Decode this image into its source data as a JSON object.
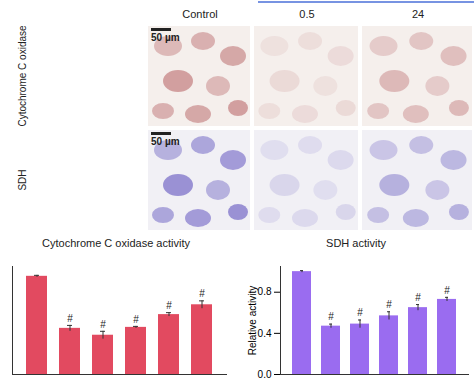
{
  "figure_panels": {
    "columns": [
      "Control",
      "0.5",
      "24"
    ],
    "rows": [
      "Cytochrome C oxidase",
      "SDH"
    ],
    "scale_bar": "50 µm"
  },
  "chart_data": [
    {
      "type": "bar",
      "title": "Cytochrome C oxidase activity",
      "categories": [
        null,
        null,
        null,
        null,
        null,
        null
      ],
      "values": [
        1,
        0.47,
        0.4,
        0.48,
        0.61,
        0.71
      ],
      "errors": [
        0.01,
        0.03,
        0.04,
        0.01,
        0.02,
        0.04
      ],
      "annotations": [
        null,
        "#",
        "#",
        "#",
        "#",
        "#"
      ],
      "color": "#e24a60",
      "ylim": [
        0,
        1.1
      ],
      "yticks": [],
      "tick_labels": false
    },
    {
      "type": "bar",
      "title": "SDH activity",
      "y_label": "Relative activity",
      "categories": [
        null,
        null,
        null,
        null,
        null,
        null
      ],
      "values": [
        1,
        0.47,
        0.49,
        0.57,
        0.65,
        0.73
      ],
      "errors": [
        0.01,
        0.02,
        0.04,
        0.04,
        0.03,
        0.02
      ],
      "annotations": [
        null,
        "#",
        "#",
        "#",
        "#",
        "#"
      ],
      "color": "#9a6cf0",
      "ylim": [
        0,
        1.05
      ],
      "yticks": [
        0,
        0.4,
        0.8
      ],
      "tick_labels": "y"
    }
  ]
}
